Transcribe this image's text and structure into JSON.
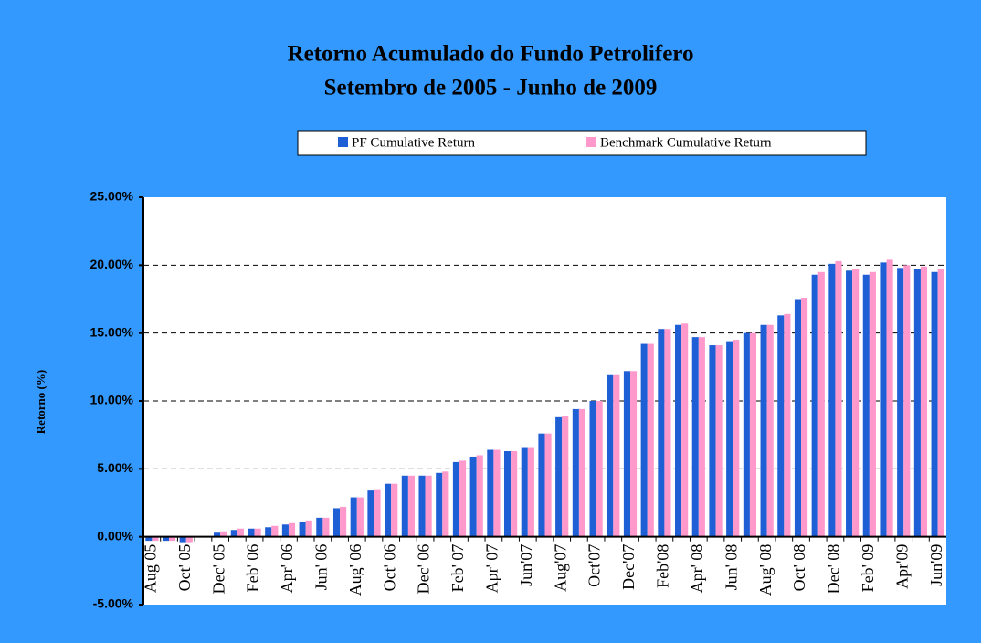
{
  "chart_data": {
    "type": "bar",
    "title": [
      "Retorno Acumulado do Fundo Petrolifero",
      "Setembro de 2005 - Junho de 2009"
    ],
    "y_label": "Retorno (%)",
    "categories": [
      "Aug 05",
      null,
      "Oct' 05",
      null,
      "Dec' 05",
      null,
      "Feb' 06",
      null,
      "Apr' 06",
      null,
      "Jun' 06",
      null,
      "Aug' 06",
      null,
      "Oct' 06",
      null,
      "Dec' 06",
      null,
      "Feb' 07",
      null,
      "Apr' 07",
      null,
      "Jun'07",
      null,
      "Aug'07",
      null,
      "Oct'07",
      null,
      "Dec'07",
      null,
      "Feb'08",
      null,
      "Apr' 08",
      null,
      "Jun' 08",
      null,
      "Aug' 08",
      null,
      "Oct' 08",
      null,
      "Dec' 08",
      null,
      "Feb' 09",
      null,
      "Apr'09",
      null,
      "Jun'09"
    ],
    "series": [
      {
        "name": "PF Cumulative Return",
        "color": "#1f5fd6",
        "values": [
          -0.3,
          -0.3,
          -0.4,
          0,
          0.3,
          0.5,
          0.6,
          0.7,
          0.9,
          1.1,
          1.4,
          2.1,
          2.9,
          3.4,
          3.9,
          4.5,
          4.5,
          4.7,
          5.5,
          5.9,
          6.4,
          6.3,
          6.6,
          7.6,
          8.8,
          9.4,
          10.0,
          11.9,
          12.2,
          14.2,
          15.3,
          15.6,
          14.7,
          14.1,
          14.4,
          15.0,
          15.6,
          16.3,
          17.5,
          19.3,
          20.1,
          19.6,
          19.3,
          20.2,
          19.8,
          19.7,
          19.5
        ]
      },
      {
        "name": "Benchmark Cumulative Return",
        "color": "#ff99cc",
        "values": [
          -0.3,
          -0.3,
          -0.4,
          0,
          0.4,
          0.6,
          0.6,
          0.8,
          1.0,
          1.2,
          1.4,
          2.2,
          2.9,
          3.5,
          3.9,
          4.5,
          4.5,
          4.8,
          5.6,
          6.0,
          6.4,
          6.3,
          6.6,
          7.6,
          8.9,
          9.4,
          10.0,
          11.9,
          12.2,
          14.2,
          15.3,
          15.7,
          14.7,
          14.1,
          14.5,
          15.0,
          15.6,
          16.4,
          17.6,
          19.5,
          20.3,
          19.7,
          19.5,
          20.4,
          20.0,
          19.9,
          19.7
        ]
      }
    ],
    "ylim": [
      -5,
      25
    ],
    "yticks": [
      {
        "value": -5,
        "label": "-5.00%"
      },
      {
        "value": 0,
        "label": "0.00%"
      },
      {
        "value": 5,
        "label": "5.00%"
      },
      {
        "value": 10,
        "label": "10.00%"
      },
      {
        "value": 15,
        "label": "15.00%"
      },
      {
        "value": 20,
        "label": "20.00%"
      },
      {
        "value": 25,
        "label": "25.00%"
      }
    ],
    "grid": true,
    "legend": "top"
  }
}
